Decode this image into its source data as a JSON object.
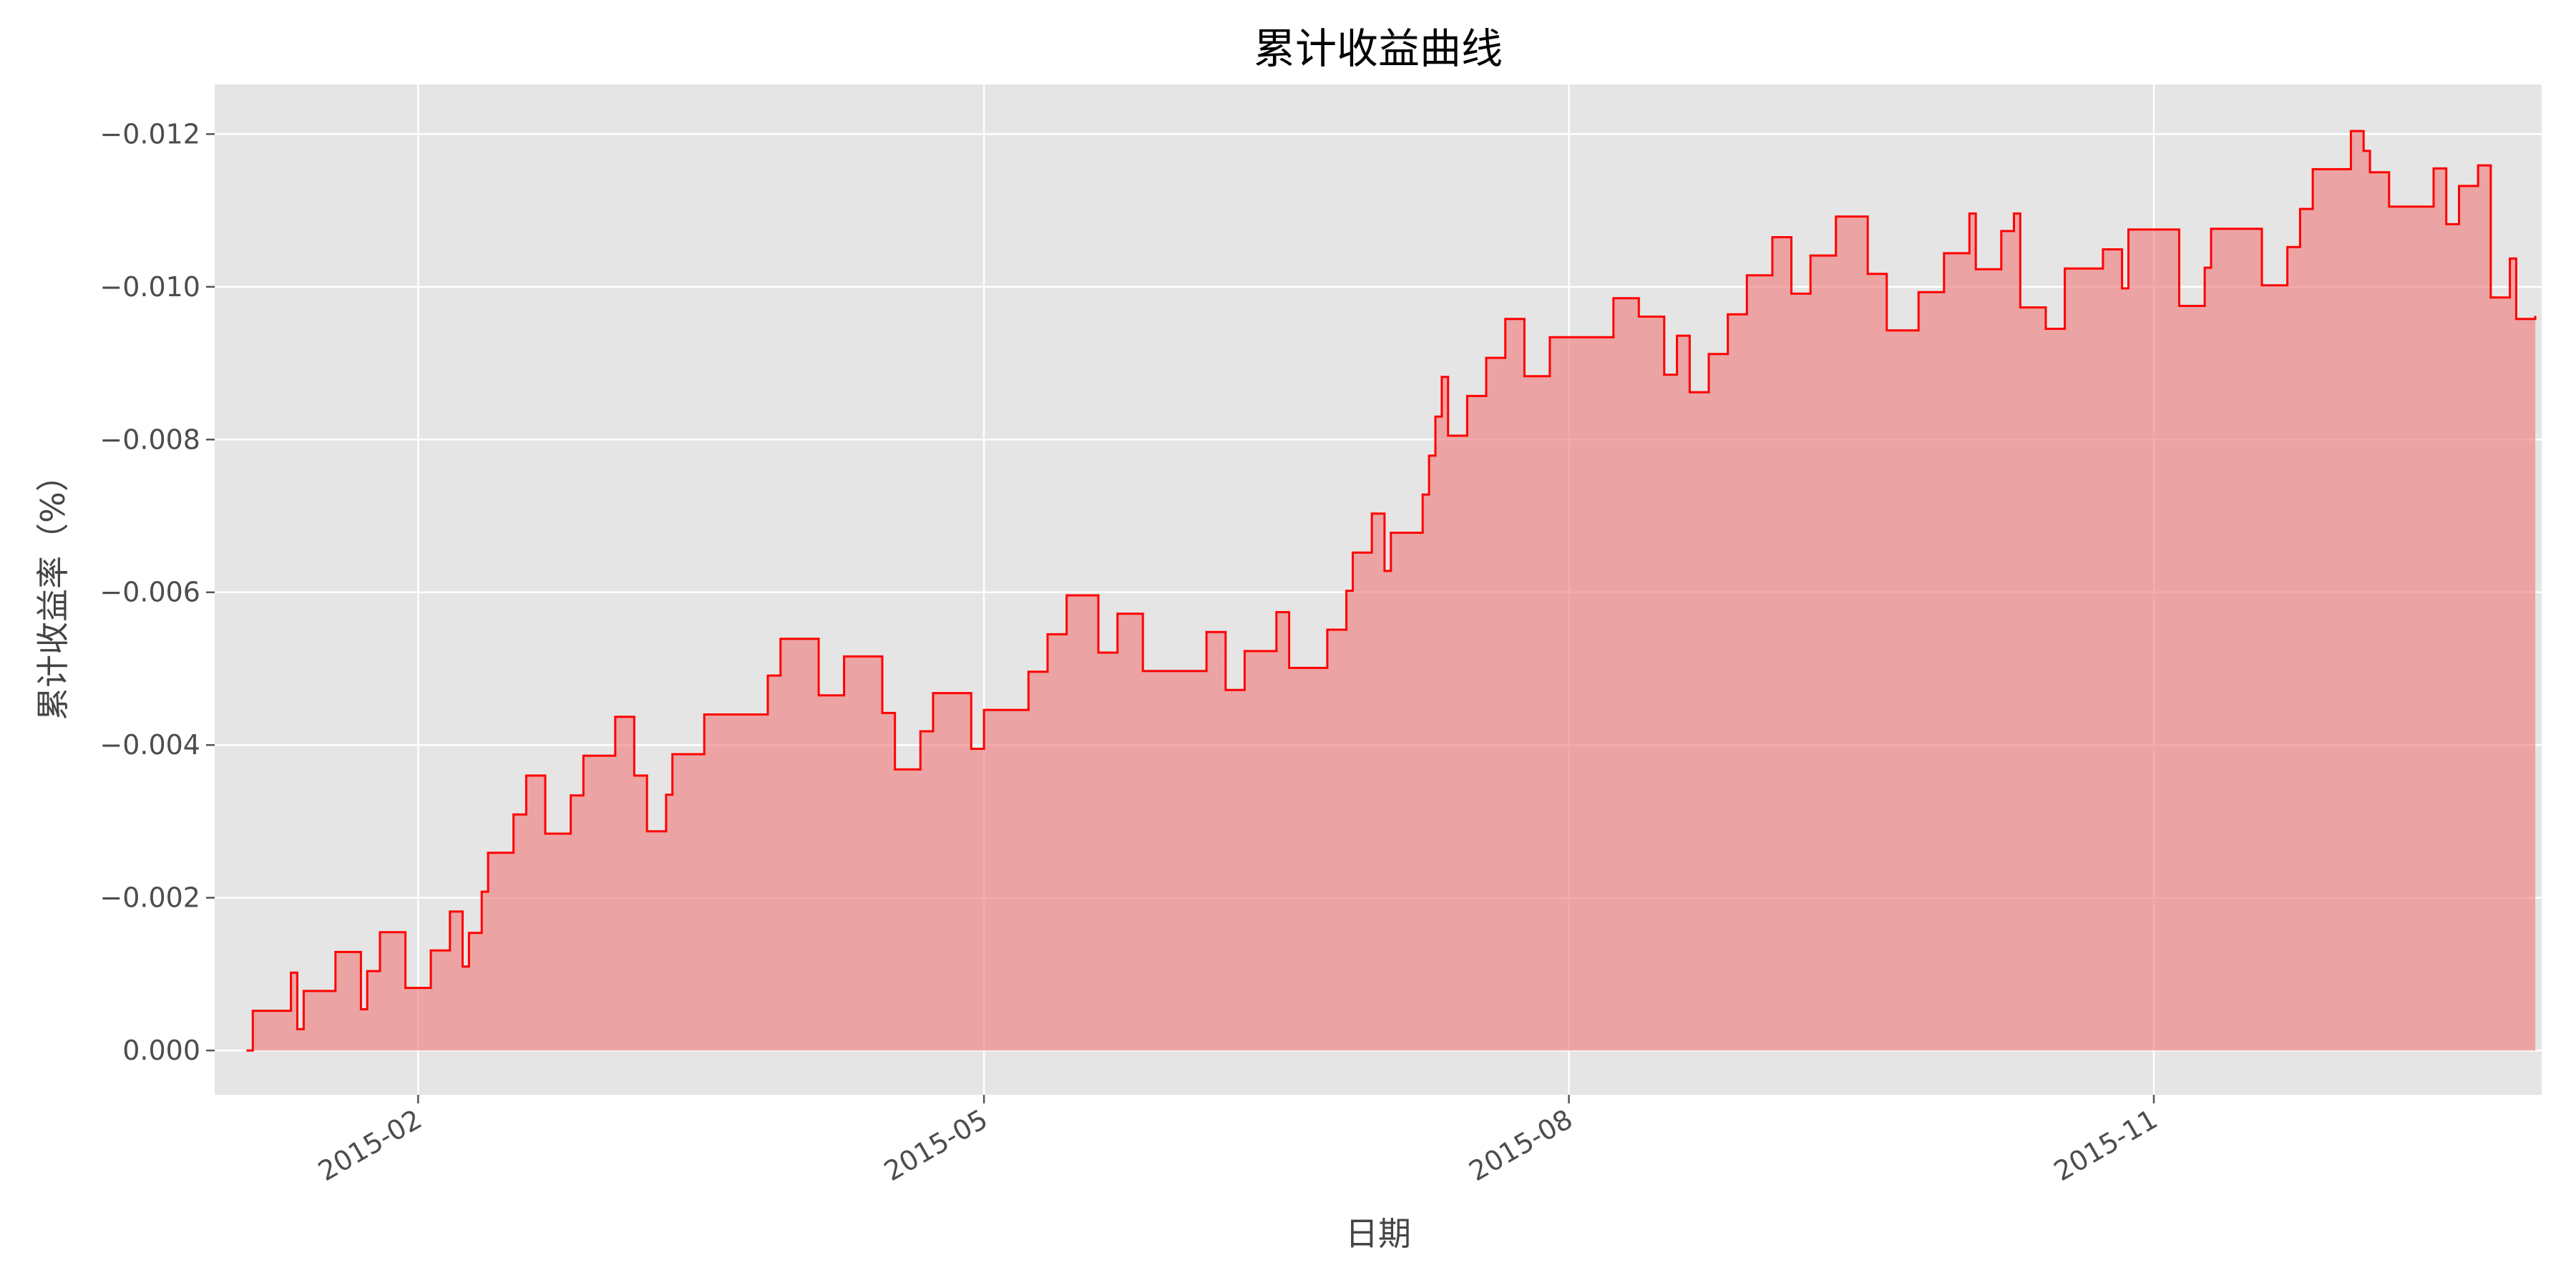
{
  "chart_data": {
    "type": "area",
    "title": "累计收益曲线",
    "xlabel": "日期",
    "ylabel": "累计收益率（%）",
    "y_axis_inverted": true,
    "ylim": [
      0.00058,
      -0.01265
    ],
    "yticks": [
      0.0,
      -0.002,
      -0.004,
      -0.006,
      -0.008,
      -0.01,
      -0.012
    ],
    "ytick_labels": [
      "0.000",
      "−0.002",
      "−0.004",
      "−0.006",
      "−0.008",
      "−0.010",
      "−0.012"
    ],
    "xlim": [
      "2014-12-31",
      "2016-01-01"
    ],
    "xticks": [
      "2015-02-01",
      "2015-05-01",
      "2015-08-01",
      "2015-11-01"
    ],
    "xtick_labels": [
      "2015-02",
      "2015-05",
      "2015-08",
      "2015-11"
    ],
    "grid": true,
    "style": "ggplot",
    "line_color": "#ff0000",
    "fill_color": "#f08080",
    "fill_opacity": 0.65,
    "plot_background": "#e5e5e5",
    "x": [
      "2015-01-05",
      "2015-01-06",
      "2015-01-12",
      "2015-01-13",
      "2015-01-14",
      "2015-01-19",
      "2015-01-23",
      "2015-01-24",
      "2015-01-26",
      "2015-01-30",
      "2015-02-03",
      "2015-02-06",
      "2015-02-08",
      "2015-02-09",
      "2015-02-11",
      "2015-02-12",
      "2015-02-16",
      "2015-02-18",
      "2015-02-21",
      "2015-02-25",
      "2015-02-27",
      "2015-03-04",
      "2015-03-07",
      "2015-03-09",
      "2015-03-10",
      "2015-03-12",
      "2015-03-13",
      "2015-03-18",
      "2015-03-28",
      "2015-03-30",
      "2015-04-05",
      "2015-04-09",
      "2015-04-15",
      "2015-04-17",
      "2015-04-21",
      "2015-04-23",
      "2015-04-29",
      "2015-05-01",
      "2015-05-08",
      "2015-05-11",
      "2015-05-14",
      "2015-05-19",
      "2015-05-22",
      "2015-05-26",
      "2015-06-05",
      "2015-06-08",
      "2015-06-11",
      "2015-06-16",
      "2015-06-18",
      "2015-06-24",
      "2015-06-27",
      "2015-06-28",
      "2015-07-01",
      "2015-07-03",
      "2015-07-04",
      "2015-07-09",
      "2015-07-10",
      "2015-07-11",
      "2015-07-12",
      "2015-07-13",
      "2015-07-16",
      "2015-07-19",
      "2015-07-22",
      "2015-07-25",
      "2015-07-29",
      "2015-08-08",
      "2015-08-12",
      "2015-08-16",
      "2015-08-18",
      "2015-08-20",
      "2015-08-23",
      "2015-08-26",
      "2015-08-29",
      "2015-09-02",
      "2015-09-05",
      "2015-09-08",
      "2015-09-12",
      "2015-09-17",
      "2015-09-20",
      "2015-09-25",
      "2015-09-29",
      "2015-10-03",
      "2015-10-04",
      "2015-10-08",
      "2015-10-10",
      "2015-10-11",
      "2015-10-15",
      "2015-10-18",
      "2015-10-24",
      "2015-10-27",
      "2015-10-28",
      "2015-11-05",
      "2015-11-09",
      "2015-11-10",
      "2015-11-18",
      "2015-11-22",
      "2015-11-24",
      "2015-11-26",
      "2015-12-02",
      "2015-12-04",
      "2015-12-05",
      "2015-12-08",
      "2015-12-15",
      "2015-12-17",
      "2015-12-19",
      "2015-12-22",
      "2015-12-24",
      "2015-12-27",
      "2015-12-28",
      "2015-12-31"
    ],
    "values": [
      0.0,
      -0.00052,
      -0.00102,
      -0.00028,
      -0.00078,
      -0.00129,
      -0.00054,
      -0.00104,
      -0.00155,
      -0.00082,
      -0.00131,
      -0.00182,
      -0.0011,
      -0.00154,
      -0.00208,
      -0.00259,
      -0.00309,
      -0.0036,
      -0.00284,
      -0.00334,
      -0.00386,
      -0.00437,
      -0.0036,
      -0.00287,
      -0.00287,
      -0.00335,
      -0.00388,
      -0.0044,
      -0.00491,
      -0.00539,
      -0.00465,
      -0.00516,
      -0.00442,
      -0.00368,
      -0.00418,
      -0.00468,
      -0.00395,
      -0.00446,
      -0.00496,
      -0.00545,
      -0.00596,
      -0.00521,
      -0.00572,
      -0.00497,
      -0.00548,
      -0.00472,
      -0.00523,
      -0.00574,
      -0.00501,
      -0.00551,
      -0.00602,
      -0.00652,
      -0.00703,
      -0.00628,
      -0.00678,
      -0.00728,
      -0.00779,
      -0.0083,
      -0.00882,
      -0.00805,
      -0.00857,
      -0.00907,
      -0.00958,
      -0.00883,
      -0.00934,
      -0.00985,
      -0.00961,
      -0.00885,
      -0.00936,
      -0.00862,
      -0.00912,
      -0.00964,
      -0.01015,
      -0.01065,
      -0.00991,
      -0.01041,
      -0.01092,
      -0.01017,
      -0.00943,
      -0.00993,
      -0.01044,
      -0.01096,
      -0.01023,
      -0.01073,
      -0.01096,
      -0.00973,
      -0.00945,
      -0.01024,
      -0.01049,
      -0.00998,
      -0.01075,
      -0.00975,
      -0.01025,
      -0.01076,
      -0.01002,
      -0.01052,
      -0.01102,
      -0.01154,
      -0.01204,
      -0.01178,
      -0.0115,
      -0.01105,
      -0.01155,
      -0.01082,
      -0.01132,
      -0.01159,
      -0.00986,
      -0.01037,
      -0.00958,
      -0.00962
    ]
  }
}
